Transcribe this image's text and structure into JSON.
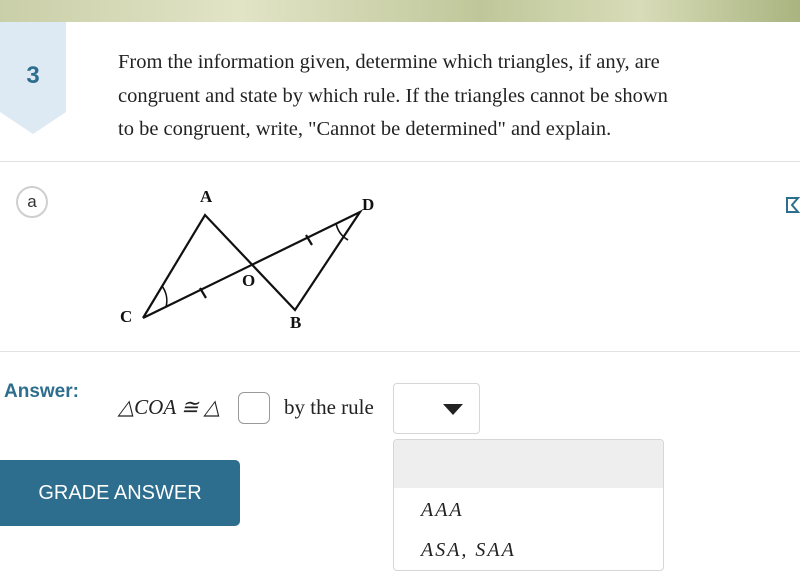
{
  "question": {
    "number": "3",
    "text_lines": [
      "From the information given, determine which triangles, if any, are",
      "congruent and state by which rule. If the triangles cannot be shown",
      "to be congruent, write, \"Cannot be determined\" and explain."
    ]
  },
  "part": {
    "label": "a",
    "figure": {
      "labels": [
        "A",
        "D",
        "O",
        "C",
        "B"
      ]
    }
  },
  "answer": {
    "label": "Answer:",
    "expression": "△COA ≅ △",
    "rule_text": "by the rule",
    "options": [
      "AAA",
      "ASA, SAA"
    ]
  },
  "button": {
    "label": "GRADE ANSWER"
  }
}
